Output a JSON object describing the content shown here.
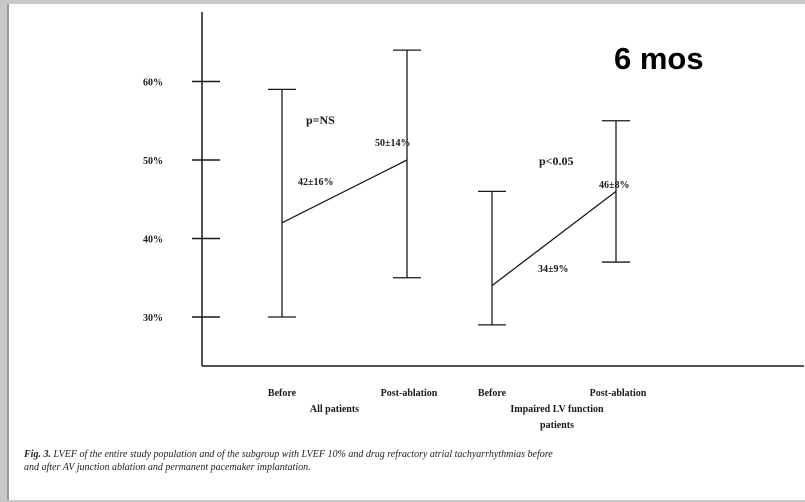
{
  "chart_data": {
    "type": "error_bar",
    "overlay_label": "6 mos",
    "y_ticks": [
      "60%",
      "50%",
      "40%",
      "30%"
    ],
    "y_tick_values": [
      60,
      50,
      40,
      30
    ],
    "ylim": [
      26,
      72
    ],
    "groups": [
      {
        "name": "All patients",
        "x_labels": [
          "Before",
          "Post-ablation"
        ],
        "p_label": "p=NS",
        "points": [
          {
            "label": "Before",
            "mean": 42,
            "sd": 16,
            "low": 30,
            "high": 59,
            "mean_label": "42±16%"
          },
          {
            "label": "Post-ablation",
            "mean": 50,
            "sd": 14,
            "low": 35,
            "high": 64,
            "mean_label": "50±14%"
          }
        ]
      },
      {
        "name": "Impaired LV function patients",
        "name_lines": [
          "Impaired LV function",
          "patients"
        ],
        "x_labels": [
          "Before",
          "Post-ablation"
        ],
        "p_label": "p<0.05",
        "points": [
          {
            "label": "Before",
            "mean": 34,
            "sd": 9,
            "low": 29,
            "high": 46,
            "mean_label": "34±9%"
          },
          {
            "label": "Post-ablation",
            "mean": 46,
            "sd": 8,
            "low": 37,
            "high": 55,
            "mean_label": "46±8%"
          }
        ]
      }
    ]
  },
  "caption": {
    "fig_label": "Fig. 3.",
    "line1": " LVEF of the entire study population and of the subgroup with LVEF 10% and drug refractory atrial tachyarrhythmias before",
    "line2": "and after AV junction ablation and permanent pacemaker implantation."
  }
}
